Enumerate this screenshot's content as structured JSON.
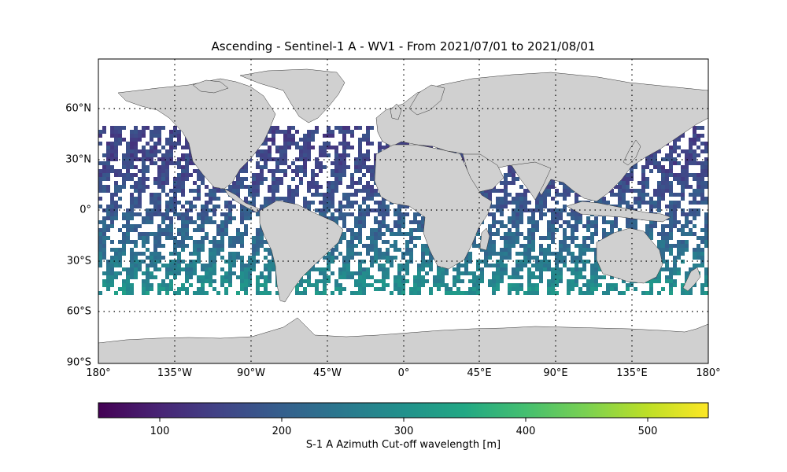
{
  "title": "Ascending - Sentinel-1 A - WV1 - From 2021/07/01 to 2021/08/01",
  "map": {
    "lon_range": [
      -180,
      180
    ],
    "lat_range": [
      -90,
      90
    ],
    "land_color": "#d0d0d0",
    "coastline_color": "#333333",
    "gridlines": "dotted",
    "lat_ticks": [
      {
        "value": 60,
        "label": "60°N"
      },
      {
        "value": 30,
        "label": "30°N"
      },
      {
        "value": 0,
        "label": "0°"
      },
      {
        "value": -30,
        "label": "30°S"
      },
      {
        "value": -60,
        "label": "60°S"
      },
      {
        "value": -90,
        "label": "90°S"
      }
    ],
    "lon_ticks": [
      {
        "value": -180,
        "label": "180°"
      },
      {
        "value": -135,
        "label": "135°W"
      },
      {
        "value": -90,
        "label": "90°W"
      },
      {
        "value": -45,
        "label": "45°W"
      },
      {
        "value": 0,
        "label": "0°"
      },
      {
        "value": 45,
        "label": "45°E"
      },
      {
        "value": 90,
        "label": "90°E"
      },
      {
        "value": 135,
        "label": "135°E"
      },
      {
        "value": 180,
        "label": "180°"
      }
    ],
    "data_lat_coverage": [
      -50,
      50
    ]
  },
  "colorbar": {
    "label": "S-1 A Azimuth Cut-off wavelength [m]",
    "range": [
      50,
      550
    ],
    "colormap": "viridis",
    "ticks": [
      {
        "value": 100,
        "label": "100"
      },
      {
        "value": 200,
        "label": "200"
      },
      {
        "value": 300,
        "label": "300"
      },
      {
        "value": 400,
        "label": "400"
      },
      {
        "value": 500,
        "label": "500"
      }
    ]
  }
}
